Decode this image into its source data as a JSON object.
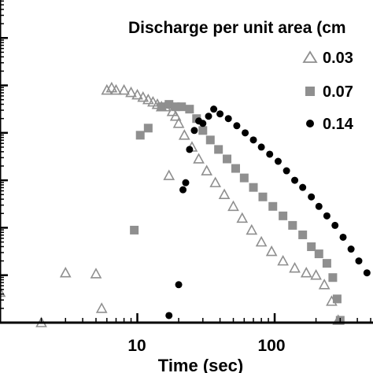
{
  "chart_data": {
    "type": "scatter",
    "xscale": "log",
    "yscale": "log",
    "xlabel": "Time (sec)",
    "ylabel": "",
    "x_tick_labels": [
      "10",
      "100"
    ],
    "x_ticks": [
      10,
      100
    ],
    "xlim": [
      1,
      520
    ],
    "ylim_decades": [
      0,
      6.8
    ],
    "legend": {
      "title": "Discharge per unit area (cm",
      "placement": "top-right",
      "entries": [
        "0.03",
        "0.07",
        "0.14"
      ]
    },
    "colors": {
      "s003": "#8f8f8f",
      "s007": "#8f8f8f",
      "s014": "#000000"
    },
    "series": [
      {
        "name": "0.03",
        "marker": "open-triangle",
        "points": [
          [
            1.0,
            0.64
          ],
          [
            2.0,
            0.0
          ],
          [
            3.0,
            1.05
          ],
          [
            5.0,
            1.03
          ],
          [
            5.5,
            0.3
          ],
          [
            6.0,
            4.9
          ],
          [
            6.5,
            4.95
          ],
          [
            7.0,
            4.9
          ],
          [
            8.0,
            4.9
          ],
          [
            9.0,
            4.85
          ],
          [
            10.0,
            4.8
          ],
          [
            11.0,
            4.75
          ],
          [
            12.0,
            4.7
          ],
          [
            13.0,
            4.65
          ],
          [
            14.0,
            4.6
          ],
          [
            15.0,
            4.55
          ],
          [
            16.0,
            4.55
          ],
          [
            17.0,
            3.1
          ],
          [
            18.0,
            4.45
          ],
          [
            19.0,
            4.35
          ],
          [
            20.0,
            4.2
          ],
          [
            22.0,
            3.95
          ],
          [
            25.0,
            3.7
          ],
          [
            28.0,
            3.45
          ],
          [
            32.0,
            3.2
          ],
          [
            37.0,
            2.95
          ],
          [
            43.0,
            2.7
          ],
          [
            50.0,
            2.45
          ],
          [
            58.0,
            2.2
          ],
          [
            68.0,
            1.95
          ],
          [
            80.0,
            1.7
          ],
          [
            95.0,
            1.5
          ],
          [
            115.0,
            1.3
          ],
          [
            140.0,
            1.15
          ],
          [
            170.0,
            1.05
          ],
          [
            200.0,
            1.0
          ],
          [
            230.0,
            0.8
          ],
          [
            260.0,
            0.45
          ],
          [
            290.0,
            0.05
          ]
        ]
      },
      {
        "name": "0.07",
        "marker": "filled-square",
        "points": [
          [
            9.5,
            1.95
          ],
          [
            10.5,
            3.95
          ],
          [
            12.0,
            4.1
          ],
          [
            15.0,
            4.55
          ],
          [
            17.0,
            4.6
          ],
          [
            19.0,
            4.55
          ],
          [
            21.0,
            4.55
          ],
          [
            24.0,
            4.5
          ],
          [
            27.0,
            4.3
          ],
          [
            30.0,
            4.05
          ],
          [
            34.0,
            3.85
          ],
          [
            39.0,
            3.65
          ],
          [
            45.0,
            3.45
          ],
          [
            52.0,
            3.25
          ],
          [
            60.0,
            3.05
          ],
          [
            70.0,
            2.85
          ],
          [
            82.0,
            2.65
          ],
          [
            97.0,
            2.45
          ],
          [
            115.0,
            2.25
          ],
          [
            135.0,
            2.05
          ],
          [
            160.0,
            1.85
          ],
          [
            185.0,
            1.6
          ],
          [
            210.0,
            1.45
          ],
          [
            240.0,
            1.25
          ],
          [
            265.0,
            0.95
          ],
          [
            285.0,
            0.5
          ],
          [
            300.0,
            0.05
          ]
        ]
      },
      {
        "name": "0.14",
        "marker": "filled-circle",
        "points": [
          [
            17.0,
            0.15
          ],
          [
            20.0,
            0.8
          ],
          [
            21.5,
            2.8
          ],
          [
            22.5,
            2.95
          ],
          [
            24.0,
            3.65
          ],
          [
            26.0,
            4.05
          ],
          [
            28.0,
            4.25
          ],
          [
            30.0,
            4.2
          ],
          [
            33.0,
            4.35
          ],
          [
            36.0,
            4.5
          ],
          [
            40.0,
            4.4
          ],
          [
            46.0,
            4.3
          ],
          [
            53.0,
            4.15
          ],
          [
            61.0,
            4.0
          ],
          [
            70.0,
            3.85
          ],
          [
            80.0,
            3.7
          ],
          [
            92.0,
            3.55
          ],
          [
            106.0,
            3.4
          ],
          [
            122.0,
            3.2
          ],
          [
            140.0,
            3.0
          ],
          [
            160.0,
            2.85
          ],
          [
            185.0,
            2.65
          ],
          [
            210.0,
            2.45
          ],
          [
            240.0,
            2.25
          ],
          [
            275.0,
            2.05
          ],
          [
            315.0,
            1.8
          ],
          [
            360.0,
            1.55
          ],
          [
            410.0,
            1.3
          ],
          [
            470.0,
            1.05
          ]
        ]
      }
    ]
  }
}
